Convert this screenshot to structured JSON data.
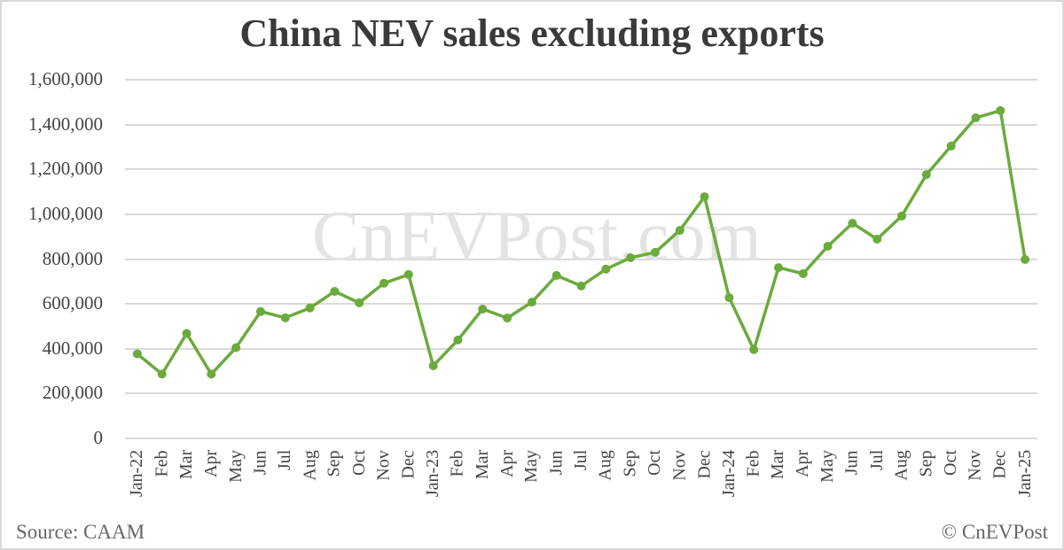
{
  "chart_data": {
    "type": "line",
    "title": "China NEV sales excluding exports",
    "xlabel": "",
    "ylabel": "",
    "ylim": [
      0,
      1600000
    ],
    "yticks": [
      0,
      200000,
      400000,
      600000,
      800000,
      1000000,
      1200000,
      1400000,
      1600000
    ],
    "ytick_labels": [
      "0",
      "200,000",
      "400,000",
      "600,000",
      "800,000",
      "1,000,000",
      "1,200,000",
      "1,400,000",
      "1,600,000"
    ],
    "grid": true,
    "legend": null,
    "categories": [
      "Jan-22",
      "Feb",
      "Mar",
      "Apr",
      "May",
      "Jun",
      "Jul",
      "Aug",
      "Sep",
      "Oct",
      "Nov",
      "Dec",
      "Jan-23",
      "Feb",
      "Mar",
      "Apr",
      "May",
      "Jun",
      "Jul",
      "Aug",
      "Sep",
      "Oct",
      "Nov",
      "Dec",
      "Jan-24",
      "Feb",
      "Mar",
      "Apr",
      "May",
      "Jun",
      "Jul",
      "Aug",
      "Sep",
      "Oct",
      "Nov",
      "Dec",
      "Jan-25"
    ],
    "series": [
      {
        "name": "NEV sales excluding exports",
        "color": "#6aab3c",
        "values": [
          377000,
          287000,
          468000,
          287000,
          405000,
          566000,
          538000,
          582000,
          656000,
          605000,
          692000,
          731000,
          324000,
          439000,
          577000,
          537000,
          608000,
          727000,
          680000,
          755000,
          806000,
          830000,
          928000,
          1078000,
          628000,
          396000,
          762000,
          735000,
          857000,
          960000,
          889000,
          992000,
          1177000,
          1304000,
          1430000,
          1462000,
          798000
        ]
      }
    ]
  },
  "watermark": "CnEVPost.com",
  "footer": {
    "source": "Source: CAAM",
    "copyright": "© CnEVPost"
  },
  "style": {
    "line_color": "#6aab3c",
    "grid_color": "#d9d9d9",
    "text_color": "#444444",
    "title_color": "#3a3a3a",
    "watermark_color": "#e3e3e3"
  }
}
